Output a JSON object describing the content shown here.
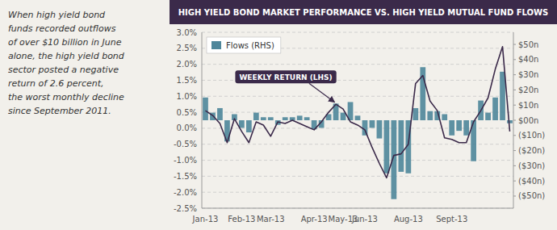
{
  "chart_data": {
    "type": "bar",
    "title": "HIGH YIELD BOND MARKET PERFORMANCE VS. HIGH YIELD MUTUAL FUND FLOWS",
    "subtitle": "When high yield bond\nfunds recorded outflows\nof over $10 billion in June\nalone, the high yield bond\nsector posted a negative\nreturn of 2.6 percent,\nthe worst monthly decline\nsince September 2011.",
    "categories": [
      "Jan-13",
      null,
      null,
      null,
      null,
      "Feb-13",
      null,
      null,
      null,
      "Mar-13",
      null,
      null,
      null,
      null,
      null,
      "Apr-13",
      null,
      null,
      null,
      "May-13",
      null,
      null,
      "Jun-13",
      null,
      null,
      null,
      null,
      null,
      "Aug-13",
      null,
      null,
      null,
      null,
      null,
      "Sept-13",
      null,
      null,
      null,
      null,
      null,
      null,
      null,
      null
    ],
    "series": [
      {
        "name": "Flows (RHS)",
        "type": "bar",
        "axis": "y2",
        "color": "#4e869a",
        "values": [
          15,
          5,
          8,
          -14,
          4,
          -5,
          -8,
          5,
          2,
          2,
          -3,
          2,
          2,
          3,
          2,
          -6,
          -5,
          4,
          11,
          5,
          12,
          3,
          -10,
          -5,
          -12,
          -35,
          -52,
          -34,
          -35,
          8,
          35,
          6,
          6,
          4,
          -10,
          -7,
          -10,
          -27,
          13,
          5,
          15,
          32,
          -2
        ]
      },
      {
        "type": "line",
        "color": "#3b2a4a",
        "values": [
          0.55,
          0.4,
          0.15,
          -0.45,
          0.3,
          -0.1,
          -0.45,
          0.2,
          0.1,
          -0.25,
          0.2,
          0.15,
          0.25,
          0.15,
          0.05,
          -0.05,
          0.2,
          0.5,
          0.75,
          0.6,
          0.2,
          0.1,
          -0.05,
          -0.6,
          -1.1,
          -1.55,
          -0.85,
          -0.8,
          -0.5,
          1.4,
          1.65,
          0.85,
          0.55,
          -0.3,
          -0.35,
          -0.45,
          -0.45,
          0.2,
          0.55,
          0.95,
          1.85,
          2.55,
          -0.1
        ]
      }
    ],
    "ylim": [
      -2.5,
      3.0
    ],
    "yticks": [
      {
        "value": -2.5,
        "label": "-2.5%"
      },
      {
        "value": -2.0,
        "label": "-2.0%"
      },
      {
        "value": -1.5,
        "label": "-1.5%"
      },
      {
        "value": -1.0,
        "label": "-1.0%"
      },
      {
        "value": -0.5,
        "label": "-0.5%"
      },
      {
        "value": 0.0,
        "label": "0.0%"
      },
      {
        "value": 0.5,
        "label": "0.5%"
      },
      {
        "value": 1.0,
        "label": "1.0%"
      },
      {
        "value": 1.5,
        "label": "1.5%"
      },
      {
        "value": 2.0,
        "label": "2.0%"
      },
      {
        "value": 2.5,
        "label": "2.5%"
      },
      {
        "value": 3.0,
        "label": "3.0%"
      }
    ],
    "y2lim": [
      -58,
      58
    ],
    "y2ticks": [
      {
        "value": -50,
        "label": "($50n)"
      },
      {
        "value": -40,
        "label": "($40n)"
      },
      {
        "value": -30,
        "label": "($30n)"
      },
      {
        "value": -20,
        "label": "($20n)"
      },
      {
        "value": -10,
        "label": "($10n)"
      },
      {
        "value": 0,
        "label": "$00n"
      },
      {
        "value": 10,
        "label": "$10n"
      },
      {
        "value": 20,
        "label": "$20n"
      },
      {
        "value": 30,
        "label": "$30n"
      },
      {
        "value": 40,
        "label": "$40n"
      },
      {
        "value": 50,
        "label": "$50n"
      }
    ],
    "grid": true,
    "legend": "upper left",
    "annotations": [
      {
        "text": "WEEKLY RETURN (LHS)",
        "x": 18,
        "y": 0.75
      }
    ]
  }
}
